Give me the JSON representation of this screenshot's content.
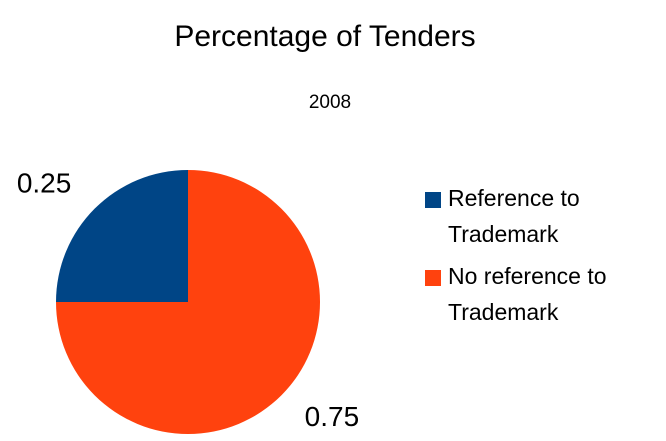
{
  "chart_data": {
    "type": "pie",
    "title": "Percentage of Tenders",
    "subtitle": "2008",
    "categories": [
      "Reference to Trademark",
      "No reference to Trademark"
    ],
    "values": [
      0.25,
      0.75
    ],
    "colors": [
      "#004586",
      "#ff420e"
    ],
    "legend": "right"
  }
}
